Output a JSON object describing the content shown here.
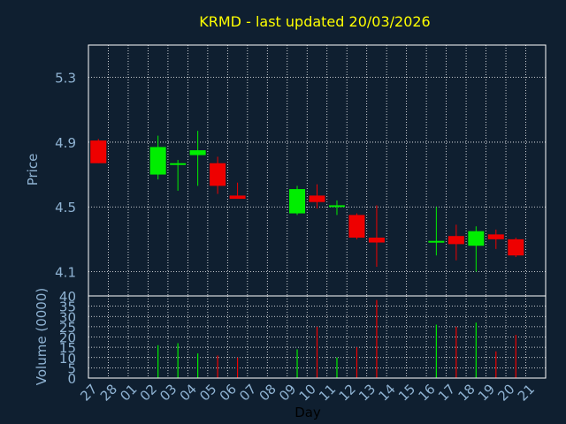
{
  "colors": {
    "background": "#0f1f30",
    "frame": "#ffffff",
    "grid": "#ffffff",
    "title": "#ffff00",
    "axis_label": "#8fb3d3",
    "up": "#00ee00",
    "down": "#ee0000",
    "xlabel": "#000000"
  },
  "chart_data": [
    {
      "type": "candlestick",
      "title": "KRMD - last updated 20/03/2026",
      "ylabel": "Price",
      "ylim": [
        3.95,
        5.5
      ],
      "yticks": [
        "4.1",
        "4.5",
        "4.9",
        "5.3"
      ],
      "ytick_values": [
        4.1,
        4.5,
        4.9,
        5.3
      ],
      "grid": true,
      "days": [
        "27",
        "28",
        "01",
        "02",
        "03",
        "04",
        "05",
        "06",
        "07",
        "08",
        "09",
        "10",
        "11",
        "12",
        "13",
        "14",
        "15",
        "16",
        "17",
        "18",
        "19",
        "20",
        "21"
      ],
      "candles": [
        {
          "day": "27",
          "open": 4.91,
          "high": 4.92,
          "low": 4.77,
          "close": 4.77
        },
        {
          "day": "02",
          "open": 4.7,
          "high": 4.94,
          "low": 4.67,
          "close": 4.87
        },
        {
          "day": "03",
          "open": 4.76,
          "high": 4.79,
          "low": 4.6,
          "close": 4.77
        },
        {
          "day": "04",
          "open": 4.82,
          "high": 4.97,
          "low": 4.63,
          "close": 4.85
        },
        {
          "day": "05",
          "open": 4.77,
          "high": 4.81,
          "low": 4.58,
          "close": 4.63
        },
        {
          "day": "06",
          "open": 4.57,
          "high": 4.65,
          "low": 4.55,
          "close": 4.55
        },
        {
          "day": "09",
          "open": 4.46,
          "high": 4.63,
          "low": 4.45,
          "close": 4.61
        },
        {
          "day": "10",
          "open": 4.57,
          "high": 4.64,
          "low": 4.49,
          "close": 4.53
        },
        {
          "day": "11",
          "open": 4.5,
          "high": 4.54,
          "low": 4.45,
          "close": 4.51
        },
        {
          "day": "12",
          "open": 4.45,
          "high": 4.46,
          "low": 4.3,
          "close": 4.31
        },
        {
          "day": "13",
          "open": 4.31,
          "high": 4.51,
          "low": 4.13,
          "close": 4.28
        },
        {
          "day": "16",
          "open": 4.28,
          "high": 4.5,
          "low": 4.2,
          "close": 4.29
        },
        {
          "day": "17",
          "open": 4.32,
          "high": 4.39,
          "low": 4.17,
          "close": 4.27
        },
        {
          "day": "18",
          "open": 4.26,
          "high": 4.38,
          "low": 4.1,
          "close": 4.35
        },
        {
          "day": "19",
          "open": 4.33,
          "high": 4.36,
          "low": 4.24,
          "close": 4.3
        },
        {
          "day": "20",
          "open": 4.3,
          "high": 4.31,
          "low": 4.19,
          "close": 4.2
        }
      ]
    },
    {
      "type": "bar",
      "ylabel": "Volume (0000)",
      "xlabel": "Day",
      "ylim": [
        0,
        40
      ],
      "yticks": [
        "0",
        "5",
        "10",
        "15",
        "20",
        "25",
        "30",
        "35",
        "40"
      ],
      "ytick_values": [
        0,
        5,
        10,
        15,
        20,
        25,
        30,
        35,
        40
      ],
      "grid": true,
      "bars": [
        {
          "day": "02",
          "value": 16,
          "dir": "up"
        },
        {
          "day": "03",
          "value": 17,
          "dir": "up"
        },
        {
          "day": "04",
          "value": 12,
          "dir": "up"
        },
        {
          "day": "05",
          "value": 11,
          "dir": "down"
        },
        {
          "day": "06",
          "value": 10,
          "dir": "down"
        },
        {
          "day": "09",
          "value": 14,
          "dir": "up"
        },
        {
          "day": "10",
          "value": 25,
          "dir": "down"
        },
        {
          "day": "11",
          "value": 10,
          "dir": "up"
        },
        {
          "day": "12",
          "value": 15,
          "dir": "down"
        },
        {
          "day": "13",
          "value": 38,
          "dir": "down"
        },
        {
          "day": "16",
          "value": 26,
          "dir": "up"
        },
        {
          "day": "17",
          "value": 25,
          "dir": "down"
        },
        {
          "day": "18",
          "value": 27,
          "dir": "up"
        },
        {
          "day": "19",
          "value": 13,
          "dir": "down"
        },
        {
          "day": "20",
          "value": 21,
          "dir": "down"
        }
      ]
    }
  ]
}
